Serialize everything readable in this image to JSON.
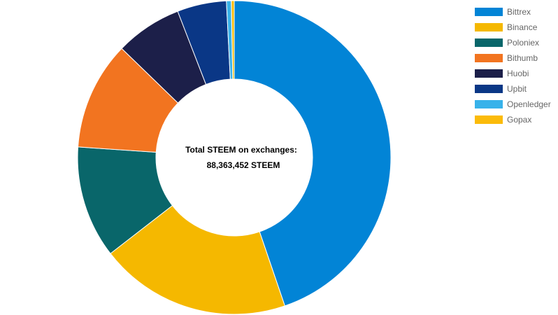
{
  "chart_data": {
    "type": "pie",
    "variant": "donut",
    "center_label": "Total STEEM on exchanges:",
    "center_value": "88,363,452 STEEM",
    "legend_position": "right",
    "slices": [
      {
        "label": "Bittrex",
        "value": 44.9,
        "color": "#0284d6"
      },
      {
        "label": "Binance",
        "value": 19.8,
        "color": "#f5b800"
      },
      {
        "label": "Poloniex",
        "value": 11.6,
        "color": "#09666a"
      },
      {
        "label": "Bithumb",
        "value": 11.2,
        "color": "#f27420"
      },
      {
        "label": "Huobi",
        "value": 6.9,
        "color": "#1c1f49"
      },
      {
        "label": "Upbit",
        "value": 5.1,
        "color": "#0a3786"
      },
      {
        "label": "Openledger",
        "value": 0.5,
        "color": "#38b2ea"
      },
      {
        "label": "Gopax",
        "value": 0.3,
        "color": "#fbbb0a"
      }
    ]
  }
}
